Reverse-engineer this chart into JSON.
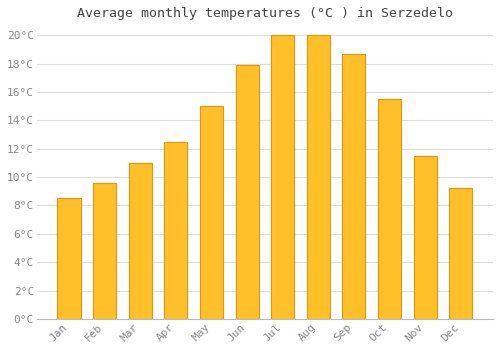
{
  "title": "Average monthly temperatures (°C ) in Serzedelo",
  "months": [
    "Jan",
    "Feb",
    "Mar",
    "Apr",
    "May",
    "Jun",
    "Jul",
    "Aug",
    "Sep",
    "Oct",
    "Nov",
    "Dec"
  ],
  "values": [
    8.5,
    9.6,
    11.0,
    12.5,
    15.0,
    17.9,
    20.0,
    20.0,
    18.7,
    15.5,
    11.5,
    9.2
  ],
  "bar_color": "#FFC02A",
  "bar_edge_color": "#E8950A",
  "background_color": "#FFFFFF",
  "plot_bg_color": "#FFFFFF",
  "grid_color": "#DDDDDD",
  "title_color": "#444444",
  "tick_color": "#888888",
  "ylim": [
    0,
    20.5
  ],
  "yticks": [
    0,
    2,
    4,
    6,
    8,
    10,
    12,
    14,
    16,
    18,
    20
  ],
  "title_fontsize": 9.5,
  "tick_fontsize": 8,
  "bar_width": 0.65,
  "figsize": [
    5.0,
    3.5
  ],
  "dpi": 100
}
